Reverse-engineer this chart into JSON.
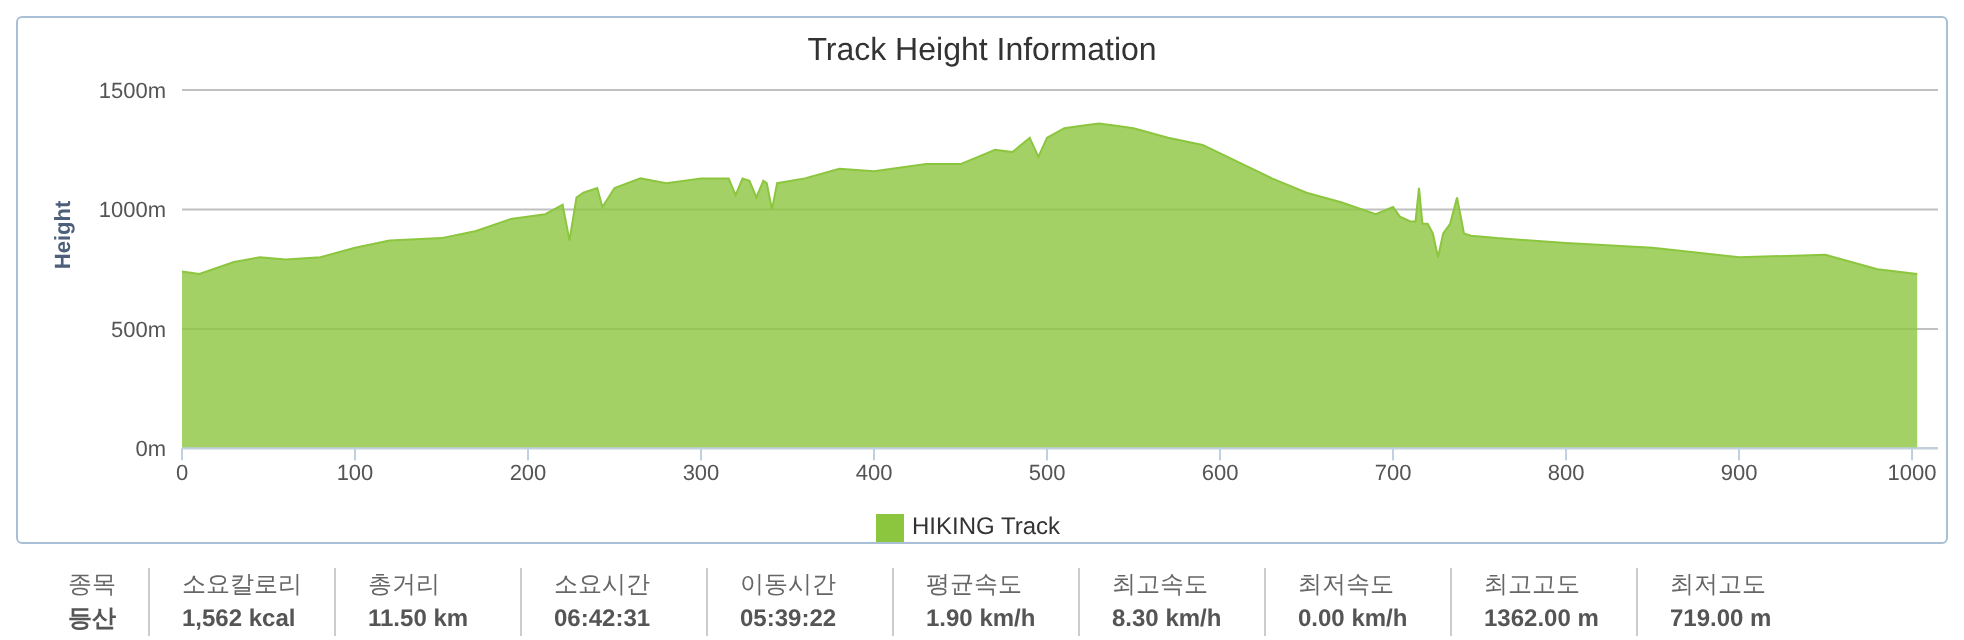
{
  "chart_data": {
    "type": "area",
    "title": "Track Height Information",
    "ylabel": "Height",
    "x": [
      0,
      10,
      30,
      45,
      60,
      80,
      100,
      120,
      150,
      170,
      190,
      210,
      220,
      224,
      228,
      232,
      240,
      243,
      250,
      265,
      280,
      300,
      316,
      320,
      324,
      328,
      332,
      336,
      338,
      341,
      344,
      360,
      380,
      400,
      430,
      450,
      470,
      480,
      490,
      495,
      500,
      510,
      520,
      530,
      540,
      550,
      570,
      590,
      610,
      630,
      650,
      670,
      690,
      700,
      704,
      710,
      713,
      715,
      717,
      720,
      723,
      726,
      729,
      733,
      737,
      741,
      745,
      760,
      800,
      850,
      900,
      950,
      980,
      1003
    ],
    "series": [
      {
        "name": "HIKING Track",
        "color": "#8cc63f",
        "values": [
          740,
          730,
          780,
          800,
          790,
          800,
          840,
          870,
          880,
          910,
          960,
          980,
          1020,
          870,
          1050,
          1070,
          1090,
          1010,
          1090,
          1130,
          1110,
          1130,
          1130,
          1060,
          1130,
          1120,
          1050,
          1120,
          1110,
          1000,
          1110,
          1130,
          1170,
          1160,
          1190,
          1190,
          1250,
          1240,
          1300,
          1220,
          1300,
          1340,
          1350,
          1360,
          1350,
          1340,
          1300,
          1270,
          1200,
          1130,
          1070,
          1030,
          980,
          1010,
          970,
          950,
          950,
          1090,
          940,
          940,
          900,
          800,
          900,
          940,
          1050,
          900,
          890,
          880,
          860,
          840,
          800,
          810,
          750,
          730
        ]
      }
    ],
    "xlim": [
      0,
      1015
    ],
    "xticks": [
      0,
      100,
      200,
      300,
      400,
      500,
      600,
      700,
      800,
      900,
      1000
    ],
    "ylim": [
      0,
      1500
    ],
    "yticks": [
      {
        "value": 0,
        "label": "0m"
      },
      {
        "value": 500,
        "label": "500m"
      },
      {
        "value": 1000,
        "label": "1000m"
      },
      {
        "value": 1500,
        "label": "1500m"
      }
    ],
    "grid": "y",
    "legend": "bottom",
    "annotations": [
      "종목",
      "등산",
      "소요칼로리",
      "1,562 kcal",
      "총거리",
      "11.50 km",
      "소요시간",
      "06:42:31",
      "이동시간",
      "05:39:22",
      "평균속도",
      "1.90 km/h",
      "최고속도",
      "8.30 km/h",
      "최저속도",
      "0.00 km/h",
      "최고고도",
      "1362.00 m",
      "최저고도",
      "719.00 m"
    ]
  }
}
